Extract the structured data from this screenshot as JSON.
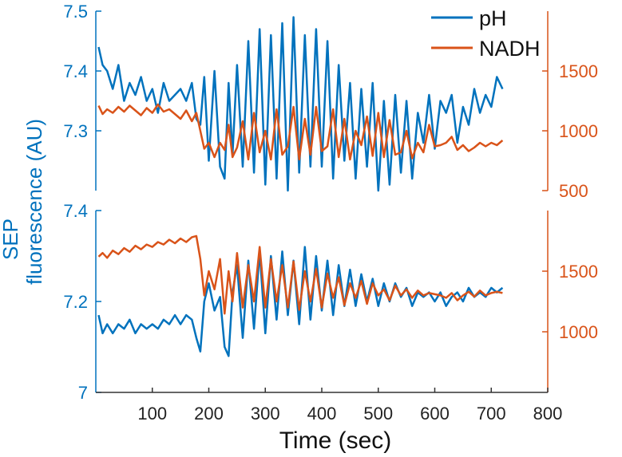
{
  "chart_data": {
    "type": "line",
    "xlabel": "Time (sec)",
    "ylabel_lines": [
      "SEP",
      "fluorescence (AU)"
    ],
    "x_ticks": [
      "100",
      "200",
      "300",
      "400",
      "500",
      "600",
      "700",
      "800"
    ],
    "x_tick_values": [
      100,
      200,
      300,
      400,
      500,
      600,
      700,
      800
    ],
    "xlim": [
      0,
      800
    ],
    "legend": {
      "placement": "top-right",
      "entries": [
        "pH",
        "NADH"
      ]
    },
    "colors": {
      "pH": "#0072bd",
      "NADH": "#d95319"
    },
    "panels": [
      {
        "left_ylim": [
          7.2,
          7.5
        ],
        "left_ticks": [
          "7.3",
          "7.4",
          "7.5"
        ],
        "left_tick_values": [
          7.3,
          7.4,
          7.5
        ],
        "right_ylim": [
          500,
          2000
        ],
        "right_ticks": [
          "500",
          "1000",
          "1500"
        ],
        "right_tick_values": [
          500,
          1000,
          1500
        ],
        "series": [
          {
            "name": "pH",
            "axis": "left",
            "x": [
              5,
              12,
              20,
              30,
              40,
              50,
              60,
              70,
              80,
              90,
              100,
              110,
              120,
              130,
              140,
              150,
              160,
              170,
              178,
              185,
              192,
              200,
              210,
              220,
              228,
              235,
              242,
              250,
              260,
              270,
              280,
              290,
              300,
              310,
              320,
              330,
              340,
              350,
              360,
              370,
              380,
              390,
              400,
              410,
              420,
              430,
              440,
              450,
              460,
              470,
              480,
              490,
              500,
              510,
              520,
              530,
              540,
              550,
              560,
              570,
              580,
              590,
              600,
              610,
              620,
              630,
              640,
              650,
              660,
              670,
              680,
              690,
              700,
              710,
              720
            ],
            "y": [
              7.44,
              7.41,
              7.4,
              7.37,
              7.41,
              7.35,
              7.38,
              7.36,
              7.39,
              7.35,
              7.37,
              7.33,
              7.38,
              7.35,
              7.36,
              7.37,
              7.35,
              7.38,
              7.32,
              7.31,
              7.39,
              7.25,
              7.4,
              7.24,
              7.22,
              7.38,
              7.26,
              7.41,
              7.24,
              7.45,
              7.23,
              7.47,
              7.21,
              7.46,
              7.22,
              7.48,
              7.2,
              7.49,
              7.23,
              7.46,
              7.24,
              7.47,
              7.24,
              7.45,
              7.22,
              7.41,
              7.25,
              7.38,
              7.22,
              7.37,
              7.24,
              7.38,
              7.2,
              7.35,
              7.21,
              7.36,
              7.23,
              7.35,
              7.22,
              7.33,
              7.28,
              7.36,
              7.27,
              7.35,
              7.33,
              7.36,
              7.28,
              7.34,
              7.31,
              7.37,
              7.33,
              7.36,
              7.34,
              7.39,
              7.37
            ]
          },
          {
            "name": "NADH",
            "axis": "right",
            "x": [
              5,
              12,
              20,
              30,
              40,
              50,
              60,
              70,
              80,
              90,
              100,
              110,
              120,
              130,
              140,
              150,
              160,
              170,
              178,
              185,
              192,
              200,
              210,
              220,
              228,
              235,
              242,
              250,
              260,
              270,
              280,
              290,
              300,
              310,
              320,
              330,
              340,
              350,
              360,
              370,
              380,
              390,
              400,
              410,
              420,
              430,
              440,
              450,
              460,
              470,
              480,
              490,
              500,
              510,
              520,
              530,
              540,
              550,
              560,
              570,
              580,
              590,
              600,
              610,
              620,
              630,
              640,
              650,
              660,
              670,
              680,
              690,
              700,
              710,
              720
            ],
            "y": [
              1210,
              1140,
              1180,
              1150,
              1200,
              1160,
              1210,
              1170,
              1130,
              1190,
              1150,
              1220,
              1160,
              1180,
              1140,
              1100,
              1170,
              1080,
              1150,
              1000,
              850,
              900,
              780,
              900,
              840,
              1050,
              780,
              860,
              1080,
              760,
              1150,
              820,
              1000,
              760,
              1180,
              800,
              870,
              1200,
              760,
              1100,
              800,
              1200,
              830,
              870,
              1180,
              780,
              1100,
              760,
              1000,
              880,
              1120,
              790,
              1150,
              780,
              1090,
              800,
              820,
              1000,
              770,
              900,
              820,
              1050,
              870,
              880,
              900,
              950,
              840,
              880,
              830,
              860,
              900,
              870,
              900,
              880,
              920
            ]
          }
        ]
      },
      {
        "left_ylim": [
          7.0,
          7.4
        ],
        "left_ticks": [
          "7",
          "7.2",
          "7.4"
        ],
        "left_tick_values": [
          7.0,
          7.2,
          7.4
        ],
        "right_ylim": [
          500,
          2000
        ],
        "right_ticks": [
          "1000",
          "1500"
        ],
        "right_tick_values": [
          1000,
          1500
        ],
        "series": [
          {
            "name": "pH",
            "axis": "left",
            "x": [
              5,
              12,
              20,
              30,
              40,
              50,
              60,
              70,
              80,
              90,
              100,
              110,
              120,
              130,
              140,
              150,
              160,
              170,
              178,
              185,
              192,
              200,
              210,
              220,
              228,
              235,
              242,
              250,
              260,
              270,
              280,
              290,
              300,
              310,
              320,
              330,
              340,
              350,
              360,
              370,
              380,
              390,
              400,
              410,
              420,
              430,
              440,
              450,
              460,
              470,
              480,
              490,
              500,
              510,
              520,
              530,
              540,
              550,
              560,
              570,
              580,
              590,
              600,
              610,
              620,
              630,
              640,
              650,
              660,
              670,
              680,
              690,
              700,
              710,
              720
            ],
            "y": [
              7.17,
              7.13,
              7.15,
              7.13,
              7.15,
              7.14,
              7.16,
              7.13,
              7.15,
              7.14,
              7.15,
              7.14,
              7.16,
              7.15,
              7.17,
              7.15,
              7.17,
              7.16,
              7.12,
              7.09,
              7.2,
              7.24,
              7.18,
              7.21,
              7.1,
              7.08,
              7.22,
              7.28,
              7.12,
              7.29,
              7.14,
              7.31,
              7.13,
              7.3,
              7.16,
              7.31,
              7.17,
              7.29,
              7.15,
              7.32,
              7.16,
              7.3,
              7.18,
              7.29,
              7.17,
              7.28,
              7.19,
              7.27,
              7.19,
              7.26,
              7.2,
              7.25,
              7.19,
              7.24,
              7.2,
              7.24,
              7.21,
              7.23,
              7.19,
              7.22,
              7.21,
              7.22,
              7.2,
              7.22,
              7.19,
              7.21,
              7.22,
              7.2,
              7.23,
              7.21,
              7.22,
              7.21,
              7.23,
              7.22,
              7.23
            ]
          },
          {
            "name": "NADH",
            "axis": "right",
            "x": [
              5,
              12,
              20,
              30,
              40,
              50,
              60,
              70,
              80,
              90,
              100,
              110,
              120,
              130,
              140,
              150,
              160,
              170,
              178,
              185,
              192,
              200,
              210,
              220,
              228,
              235,
              242,
              250,
              260,
              270,
              280,
              290,
              300,
              310,
              320,
              330,
              340,
              350,
              360,
              370,
              380,
              390,
              400,
              410,
              420,
              430,
              440,
              450,
              460,
              470,
              480,
              490,
              500,
              510,
              520,
              530,
              540,
              550,
              560,
              570,
              580,
              590,
              600,
              610,
              620,
              630,
              640,
              650,
              660,
              670,
              680,
              690,
              700,
              710,
              720
            ],
            "y": [
              1620,
              1650,
              1610,
              1670,
              1640,
              1690,
              1660,
              1710,
              1680,
              1720,
              1700,
              1740,
              1720,
              1760,
              1730,
              1770,
              1740,
              1780,
              1790,
              1600,
              1300,
              1500,
              1350,
              1600,
              1150,
              1500,
              1250,
              1650,
              1200,
              1550,
              1250,
              1700,
              1200,
              1600,
              1250,
              1550,
              1200,
              1580,
              1180,
              1500,
              1250,
              1520,
              1200,
              1480,
              1280,
              1450,
              1220,
              1400,
              1280,
              1420,
              1230,
              1400,
              1300,
              1350,
              1260,
              1380,
              1300,
              1350,
              1280,
              1340,
              1300,
              1320,
              1310,
              1300,
              1280,
              1320,
              1260,
              1300,
              1330,
              1290,
              1340,
              1300,
              1320,
              1330,
              1320
            ]
          }
        ]
      }
    ]
  }
}
